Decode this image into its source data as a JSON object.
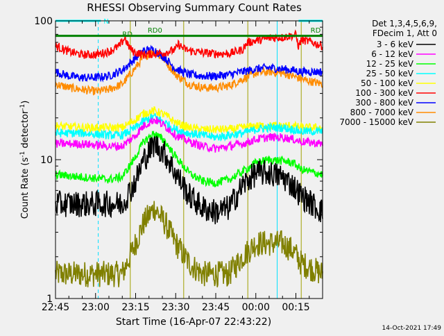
{
  "chart_data": {
    "type": "line",
    "title": "RHESSI Observing Summary Count Rates",
    "xlabel": "Start Time (16-Apr-07 22:43:22)",
    "ylabel_main": "Count Rate (s",
    "ylabel_sup1": "-1",
    "ylabel_mid": " detector",
    "ylabel_sup2": "-1",
    "ylabel_end": ")",
    "yscale": "log",
    "ylim": [
      1,
      100
    ],
    "y_tick_labels": [
      {
        "value": 1,
        "label": "1"
      },
      {
        "value": 10,
        "label": "10"
      },
      {
        "value": 100,
        "label": "100"
      }
    ],
    "xlim_minutes": [
      0,
      100
    ],
    "x_tick_labels": [
      {
        "minute": 0,
        "label": "22:45"
      },
      {
        "minute": 15,
        "label": "23:00"
      },
      {
        "minute": 30,
        "label": "23:15"
      },
      {
        "minute": 45,
        "label": "23:30"
      },
      {
        "minute": 60,
        "label": "23:45"
      },
      {
        "minute": 75,
        "label": "00:00"
      },
      {
        "minute": 90,
        "label": "00:15"
      }
    ],
    "legend_header": [
      "Det 1,3,4,5,6,9,",
      "FDecim 1, Att 0"
    ],
    "legend_placement": "right",
    "series": [
      {
        "name": "3 - 6 keV",
        "color": "#000000",
        "x": [
          0,
          10,
          20,
          25,
          30,
          33,
          37,
          41,
          45,
          50,
          55,
          60,
          65,
          70,
          75,
          80,
          85,
          89,
          92,
          100
        ],
        "y": [
          4.8,
          4.8,
          4.8,
          4.8,
          7,
          10,
          13,
          11,
          8,
          5.5,
          4.5,
          4.2,
          4.5,
          6.5,
          8,
          8,
          7.5,
          6.5,
          5.5,
          4.2
        ]
      },
      {
        "name": "6 - 12 keV",
        "color": "#ff00ff",
        "x": [
          0,
          10,
          20,
          25,
          30,
          33,
          37,
          41,
          45,
          50,
          55,
          60,
          65,
          70,
          75,
          80,
          85,
          89,
          92,
          100
        ],
        "y": [
          13,
          13,
          12.5,
          12.5,
          15,
          17.5,
          19.5,
          17.5,
          15,
          13.5,
          12.5,
          12,
          12.5,
          13,
          14,
          14.5,
          14.5,
          14,
          13.5,
          13
        ]
      },
      {
        "name": "12 - 25 keV",
        "color": "#00ff00",
        "x": [
          0,
          10,
          20,
          25,
          30,
          33,
          37,
          41,
          45,
          50,
          55,
          60,
          65,
          70,
          75,
          80,
          85,
          89,
          92,
          100
        ],
        "y": [
          7.8,
          7.5,
          7.2,
          7.5,
          10.5,
          13.5,
          15.5,
          13.5,
          10.5,
          8,
          7,
          6.8,
          7.2,
          8.2,
          9.5,
          10,
          9.8,
          9.5,
          8.5,
          7.8
        ]
      },
      {
        "name": "25 - 50 keV",
        "color": "#00ffff",
        "x": [
          0,
          10,
          20,
          25,
          30,
          33,
          37,
          41,
          45,
          50,
          55,
          60,
          65,
          70,
          75,
          80,
          85,
          89,
          92,
          100
        ],
        "y": [
          15.5,
          15.5,
          15,
          15,
          17,
          19,
          20.5,
          18.5,
          16.5,
          15.5,
          15,
          14.5,
          15,
          15.5,
          16.5,
          17,
          17,
          16.5,
          16,
          16
        ]
      },
      {
        "name": "50 - 100 keV",
        "color": "#ffff00",
        "x": [
          0,
          10,
          20,
          25,
          30,
          33,
          37,
          41,
          45,
          50,
          55,
          60,
          65,
          70,
          75,
          80,
          85,
          89,
          92,
          100
        ],
        "y": [
          17.5,
          17,
          17,
          17,
          19.5,
          21.5,
          22.5,
          21,
          18.5,
          17,
          16.5,
          16.5,
          16.5,
          17,
          17.5,
          17.5,
          17.5,
          17.5,
          17,
          17
        ]
      },
      {
        "name": "100 - 300 keV",
        "color": "#ff0000",
        "x": [
          0,
          5,
          10,
          15,
          20,
          24,
          26,
          27,
          29,
          33,
          37,
          41,
          45,
          46,
          48,
          50,
          55,
          60,
          65,
          70,
          72,
          75,
          80,
          85,
          88,
          90,
          91,
          92,
          95,
          100
        ],
        "y": [
          66,
          60,
          57,
          57,
          60,
          66,
          76,
          67,
          60,
          57,
          58,
          59,
          62,
          68,
          63,
          61,
          59,
          58,
          58,
          62,
          70,
          72,
          75,
          76,
          78,
          79,
          65,
          73,
          71,
          66
        ]
      },
      {
        "name": "300 - 800 keV",
        "color": "#0000ff",
        "x": [
          0,
          5,
          10,
          15,
          20,
          25,
          30,
          33,
          37,
          41,
          45,
          50,
          55,
          60,
          65,
          70,
          75,
          80,
          85,
          89,
          92,
          100
        ],
        "y": [
          43,
          40,
          39,
          39,
          40,
          44,
          54,
          61,
          62,
          54,
          45,
          41,
          40,
          40,
          41,
          43,
          45,
          46,
          45,
          44,
          43,
          43
        ]
      },
      {
        "name": "800 - 7000 keV",
        "color": "#ff8c00",
        "x": [
          0,
          5,
          10,
          15,
          20,
          25,
          30,
          33,
          37,
          41,
          45,
          50,
          55,
          60,
          65,
          70,
          75,
          80,
          85,
          89,
          92,
          100
        ],
        "y": [
          35,
          33,
          32,
          31,
          32,
          35,
          46,
          55,
          60,
          52,
          41,
          35,
          33,
          33,
          34,
          38,
          42,
          43,
          42,
          40,
          38,
          35
        ]
      },
      {
        "name": "7000 - 15000 keV",
        "color": "#808000",
        "x": [
          0,
          10,
          20,
          25,
          30,
          33,
          37,
          41,
          45,
          50,
          55,
          60,
          65,
          70,
          75,
          80,
          85,
          89,
          92,
          100
        ],
        "y": [
          1.5,
          1.5,
          1.5,
          1.5,
          2.5,
          3.5,
          4.5,
          3.5,
          2.5,
          1.8,
          1.5,
          1.5,
          1.5,
          2,
          2.5,
          2.5,
          2.5,
          2.2,
          1.8,
          1.5
        ]
      }
    ],
    "annotations": [
      {
        "text": "N",
        "color": "#00ffff",
        "x_minutes": 18,
        "y": 100
      },
      {
        "text": "RD0",
        "color": "#008000",
        "x_minutes": 34.5,
        "y": 86
      },
      {
        "text": "RD",
        "color": "#008000",
        "x_minutes": 25,
        "y": 81
      },
      {
        "text": "RD",
        "color": "#008000",
        "x_minutes": 95.5,
        "y": 86
      }
    ],
    "flag_bars": [
      {
        "name": "N",
        "color": "#00ffff",
        "y": 100,
        "segments": [
          [
            0,
            17
          ],
          [
            91,
            100
          ]
        ]
      },
      {
        "name": "RD0",
        "color": "#008000",
        "y": 78,
        "segments": [
          [
            0,
            28
          ],
          [
            28,
            92
          ],
          [
            92,
            100
          ]
        ]
      }
    ],
    "vlines_cyan": [
      0,
      16,
      83,
      100
    ],
    "vlines_olive": [
      28,
      48,
      72,
      92
    ],
    "grid": false
  },
  "footer": {
    "date": "14-Oct-2021 17:49"
  }
}
